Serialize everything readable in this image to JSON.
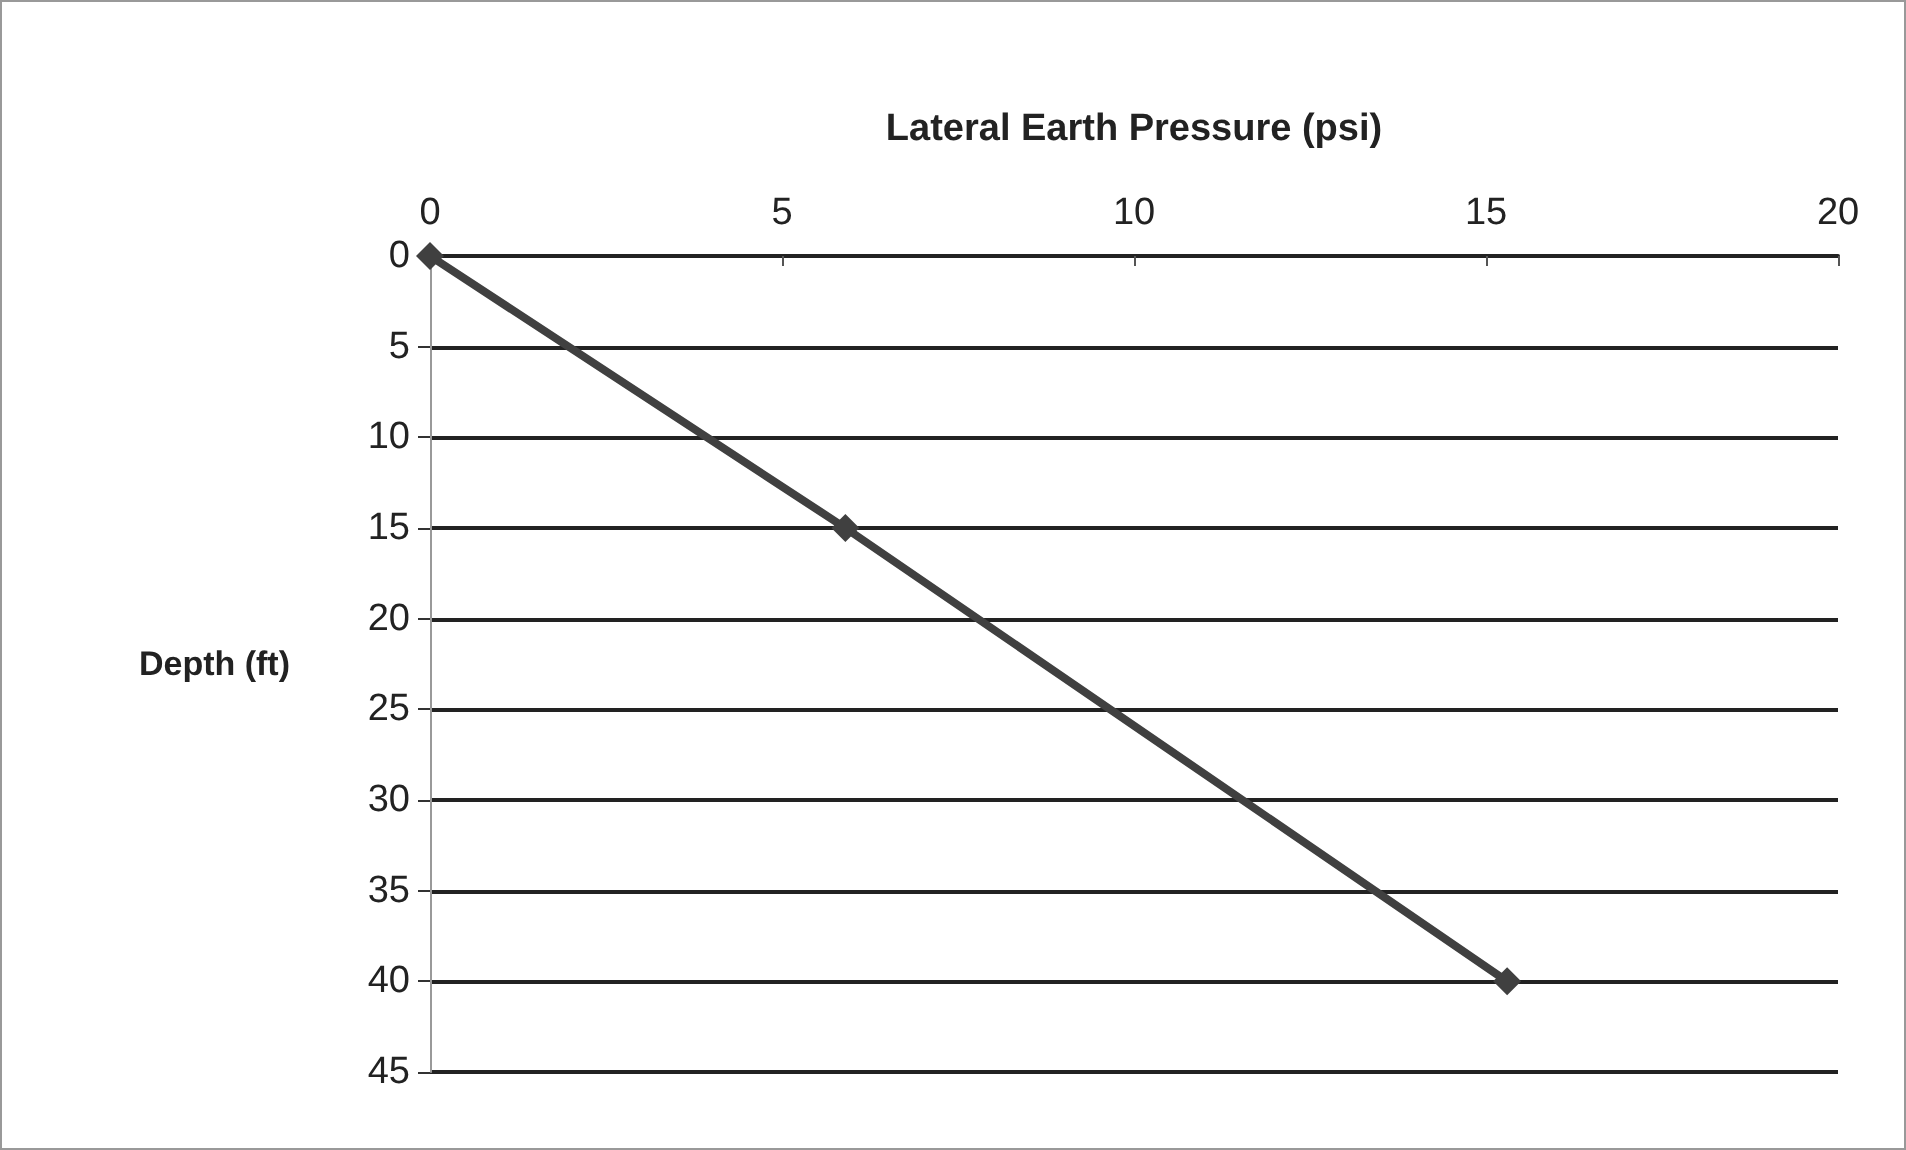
{
  "chart_data": {
    "type": "line",
    "xlabel": "Lateral Earth Pressure (psi)",
    "ylabel": "Depth (ft)",
    "x": [
      0,
      5.9,
      15.3
    ],
    "series": [
      {
        "color": "#404040",
        "values": [
          0,
          15,
          40
        ]
      }
    ],
    "xlim": [
      0,
      20
    ],
    "xticks": [
      0,
      5,
      10,
      15,
      20
    ],
    "ylim": [
      45,
      0
    ],
    "yticks": [
      0,
      5,
      10,
      15,
      20,
      25,
      30,
      35,
      40,
      45
    ],
    "grid": "y",
    "marker": "diamond",
    "line_style": "solid",
    "legend": false
  }
}
